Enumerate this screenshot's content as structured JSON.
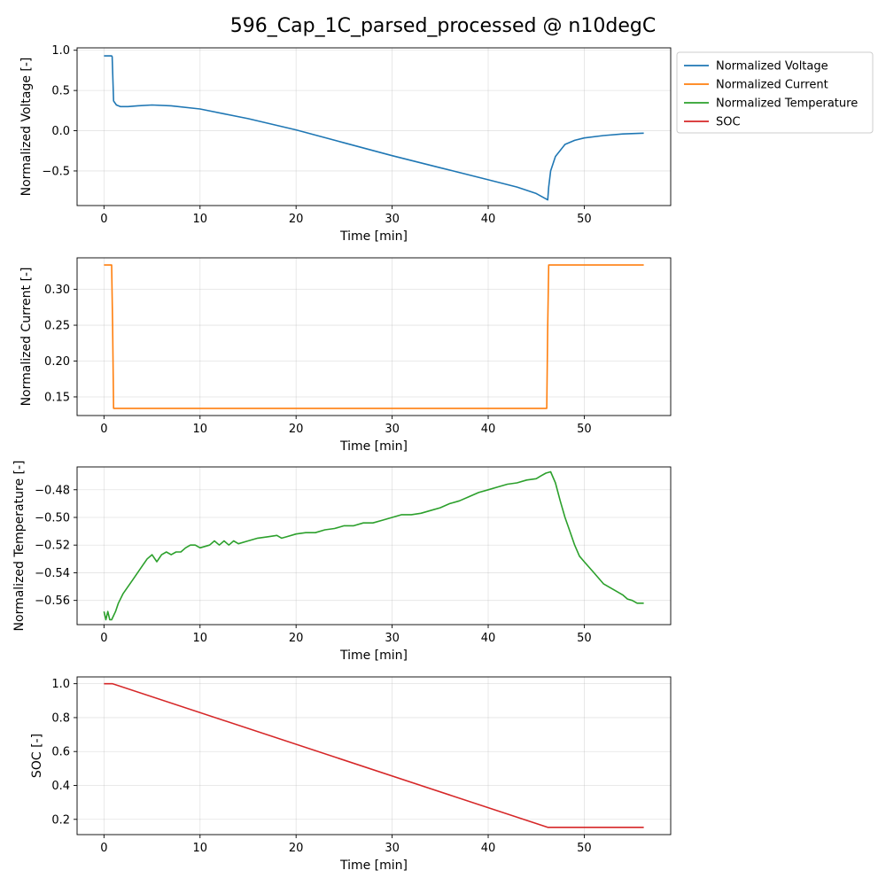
{
  "title": "596_Cap_1C_parsed_processed @ n10degC",
  "legend": {
    "placement": "right, outside top subplot",
    "entries": [
      {
        "label": "Normalized Voltage",
        "color": "#1f77b4"
      },
      {
        "label": "Normalized Current",
        "color": "#ff7f0e"
      },
      {
        "label": "Normalized Temperature",
        "color": "#2ca02c"
      },
      {
        "label": "SOC",
        "color": "#d62728"
      }
    ]
  },
  "chart_data": [
    {
      "type": "line",
      "xlabel": "Time [min]",
      "ylabel": "Normalized Voltage [-]",
      "xlim": [
        -2.8,
        59
      ],
      "ylim": [
        -0.93,
        1.03
      ],
      "xticks": [
        0,
        10,
        20,
        30,
        40,
        50
      ],
      "yticks": [
        -0.5,
        0.0,
        0.5,
        1.0
      ],
      "xtick_labels": [
        "0",
        "10",
        "20",
        "30",
        "40",
        "50"
      ],
      "ytick_labels": [
        "−0.5",
        "0.0",
        "0.5",
        "1.0"
      ],
      "grid": true,
      "series": [
        {
          "name": "Normalized Voltage",
          "color": "#1f77b4",
          "x": [
            0,
            0.8,
            0.85,
            1.0,
            1.3,
            1.7,
            2.5,
            3.5,
            5,
            7,
            10,
            15,
            20,
            25,
            30,
            35,
            40,
            43,
            45,
            46.2,
            46.3,
            46.5,
            47,
            48,
            49,
            50,
            52,
            54,
            56.2
          ],
          "y": [
            0.93,
            0.93,
            0.92,
            0.37,
            0.32,
            0.3,
            0.3,
            0.31,
            0.32,
            0.31,
            0.27,
            0.15,
            0.01,
            -0.15,
            -0.31,
            -0.46,
            -0.61,
            -0.7,
            -0.78,
            -0.86,
            -0.7,
            -0.5,
            -0.32,
            -0.17,
            -0.12,
            -0.09,
            -0.06,
            -0.04,
            -0.03
          ]
        }
      ]
    },
    {
      "type": "line",
      "xlabel": "Time [min]",
      "ylabel": "Normalized Current [-]",
      "xlim": [
        -2.8,
        59
      ],
      "ylim": [
        0.124,
        0.344
      ],
      "xticks": [
        0,
        10,
        20,
        30,
        40,
        50
      ],
      "yticks": [
        0.15,
        0.2,
        0.25,
        0.3
      ],
      "xtick_labels": [
        "0",
        "10",
        "20",
        "30",
        "40",
        "50"
      ],
      "ytick_labels": [
        "0.15",
        "0.20",
        "0.25",
        "0.30"
      ],
      "grid": true,
      "series": [
        {
          "name": "Normalized Current",
          "color": "#ff7f0e",
          "x": [
            0,
            0.8,
            0.9,
            1.0,
            46.1,
            46.2,
            46.3,
            56.2
          ],
          "y": [
            0.334,
            0.334,
            0.25,
            0.134,
            0.134,
            0.25,
            0.334,
            0.334
          ]
        }
      ]
    },
    {
      "type": "line",
      "xlabel": "Time [min]",
      "ylabel": "Normalized Temperature [-]",
      "xlim": [
        -2.8,
        59
      ],
      "ylim": [
        -0.5775,
        -0.4635
      ],
      "xticks": [
        0,
        10,
        20,
        30,
        40,
        50
      ],
      "yticks": [
        -0.56,
        -0.54,
        -0.52,
        -0.5,
        -0.48
      ],
      "xtick_labels": [
        "0",
        "10",
        "20",
        "30",
        "40",
        "50"
      ],
      "ytick_labels": [
        "−0.56",
        "−0.54",
        "−0.52",
        "−0.50",
        "−0.48"
      ],
      "grid": true,
      "series": [
        {
          "name": "Normalized Temperature",
          "color": "#2ca02c",
          "x": [
            0,
            0.2,
            0.4,
            0.6,
            0.8,
            1.2,
            1.5,
            2,
            2.5,
            3,
            3.5,
            4,
            4.5,
            5,
            5.5,
            6,
            6.5,
            7,
            7.5,
            8,
            8.5,
            9,
            9.5,
            10,
            11,
            11.5,
            12,
            12.5,
            13,
            13.5,
            14,
            15,
            16,
            17,
            18,
            18.5,
            19,
            20,
            21,
            22,
            23,
            24,
            25,
            26,
            27,
            28,
            29,
            30,
            31,
            32,
            33,
            34,
            35,
            36,
            37,
            38,
            39,
            40,
            41,
            42,
            43,
            44,
            45,
            45.5,
            46,
            46.5,
            47,
            47.5,
            48,
            48.5,
            49,
            49.5,
            50,
            51,
            52,
            53,
            54,
            54.5,
            55,
            55.5,
            56.2
          ],
          "y": [
            -0.568,
            -0.574,
            -0.568,
            -0.574,
            -0.574,
            -0.568,
            -0.562,
            -0.555,
            -0.55,
            -0.545,
            -0.54,
            -0.535,
            -0.53,
            -0.527,
            -0.532,
            -0.527,
            -0.525,
            -0.527,
            -0.525,
            -0.525,
            -0.522,
            -0.52,
            -0.52,
            -0.522,
            -0.52,
            -0.517,
            -0.52,
            -0.517,
            -0.52,
            -0.517,
            -0.519,
            -0.517,
            -0.515,
            -0.514,
            -0.513,
            -0.515,
            -0.514,
            -0.512,
            -0.511,
            -0.511,
            -0.509,
            -0.508,
            -0.506,
            -0.506,
            -0.504,
            -0.504,
            -0.502,
            -0.5,
            -0.498,
            -0.498,
            -0.497,
            -0.495,
            -0.493,
            -0.49,
            -0.488,
            -0.485,
            -0.482,
            -0.48,
            -0.478,
            -0.476,
            -0.475,
            -0.473,
            -0.472,
            -0.47,
            -0.468,
            -0.467,
            -0.475,
            -0.488,
            -0.5,
            -0.51,
            -0.52,
            -0.528,
            -0.532,
            -0.54,
            -0.548,
            -0.552,
            -0.556,
            -0.559,
            -0.56,
            -0.562,
            -0.562
          ]
        }
      ]
    },
    {
      "type": "line",
      "xlabel": "Time [min]",
      "ylabel": "SOC [-]",
      "xlim": [
        -2.8,
        59
      ],
      "ylim": [
        0.11,
        1.04
      ],
      "xticks": [
        0,
        10,
        20,
        30,
        40,
        50
      ],
      "yticks": [
        0.2,
        0.4,
        0.6,
        0.8,
        1.0
      ],
      "xtick_labels": [
        "0",
        "10",
        "20",
        "30",
        "40",
        "50"
      ],
      "ytick_labels": [
        "0.2",
        "0.4",
        "0.6",
        "0.8",
        "1.0"
      ],
      "grid": true,
      "series": [
        {
          "name": "SOC",
          "color": "#d62728",
          "x": [
            0,
            0.9,
            46.2,
            56.2
          ],
          "y": [
            1.0,
            1.0,
            0.153,
            0.153
          ]
        }
      ]
    }
  ]
}
